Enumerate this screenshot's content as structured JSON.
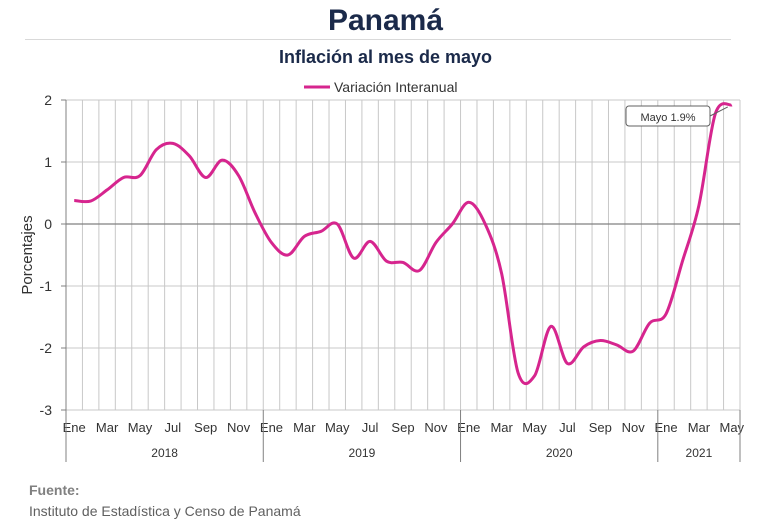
{
  "header": {
    "title": "Panamá",
    "subtitle": "Inflación al mes de mayo"
  },
  "footer": {
    "source_label": "Fuente:",
    "source_text": "Instituto de Estadística y Censo de Panamá"
  },
  "chart_data": {
    "type": "line",
    "title": "Inflación al mes de mayo",
    "ylabel": "Porcentajes",
    "xlabel": "",
    "ylim": [
      -3,
      2
    ],
    "yticks": [
      -3,
      -2,
      -1,
      0,
      1,
      2
    ],
    "grid": true,
    "legend_position": "top",
    "month_labels": [
      "Ene",
      "",
      "Mar",
      "",
      "May",
      "",
      "Jul",
      "",
      "Sep",
      "",
      "Nov",
      "",
      "Ene",
      "",
      "Mar",
      "",
      "May",
      "",
      "Jul",
      "",
      "Sep",
      "",
      "Nov",
      "",
      "Ene",
      "",
      "Mar",
      "",
      "May",
      "",
      "Jul",
      "",
      "Sep",
      "",
      "Nov",
      "",
      "Ene",
      "",
      "Mar",
      "",
      "May"
    ],
    "year_groups": [
      {
        "label": "2018",
        "months": 12
      },
      {
        "label": "2019",
        "months": 12
      },
      {
        "label": "2020",
        "months": 12
      },
      {
        "label": "2021",
        "months": 5
      }
    ],
    "series": [
      {
        "name": "Variación Interanual",
        "color": "#d6258e",
        "values": [
          0.38,
          0.37,
          0.55,
          0.75,
          0.78,
          1.2,
          1.3,
          1.1,
          0.75,
          1.03,
          0.78,
          0.18,
          -0.3,
          -0.5,
          -0.2,
          -0.12,
          0.0,
          -0.55,
          -0.28,
          -0.6,
          -0.62,
          -0.75,
          -0.3,
          0.0,
          0.35,
          0.0,
          -0.8,
          -2.4,
          -2.45,
          -1.65,
          -2.25,
          -1.98,
          -1.88,
          -1.95,
          -2.05,
          -1.6,
          -1.45,
          -0.6,
          0.3,
          1.78,
          1.92
        ]
      }
    ],
    "annotation": "Mayo 1.9%",
    "annotation_index": 40
  }
}
